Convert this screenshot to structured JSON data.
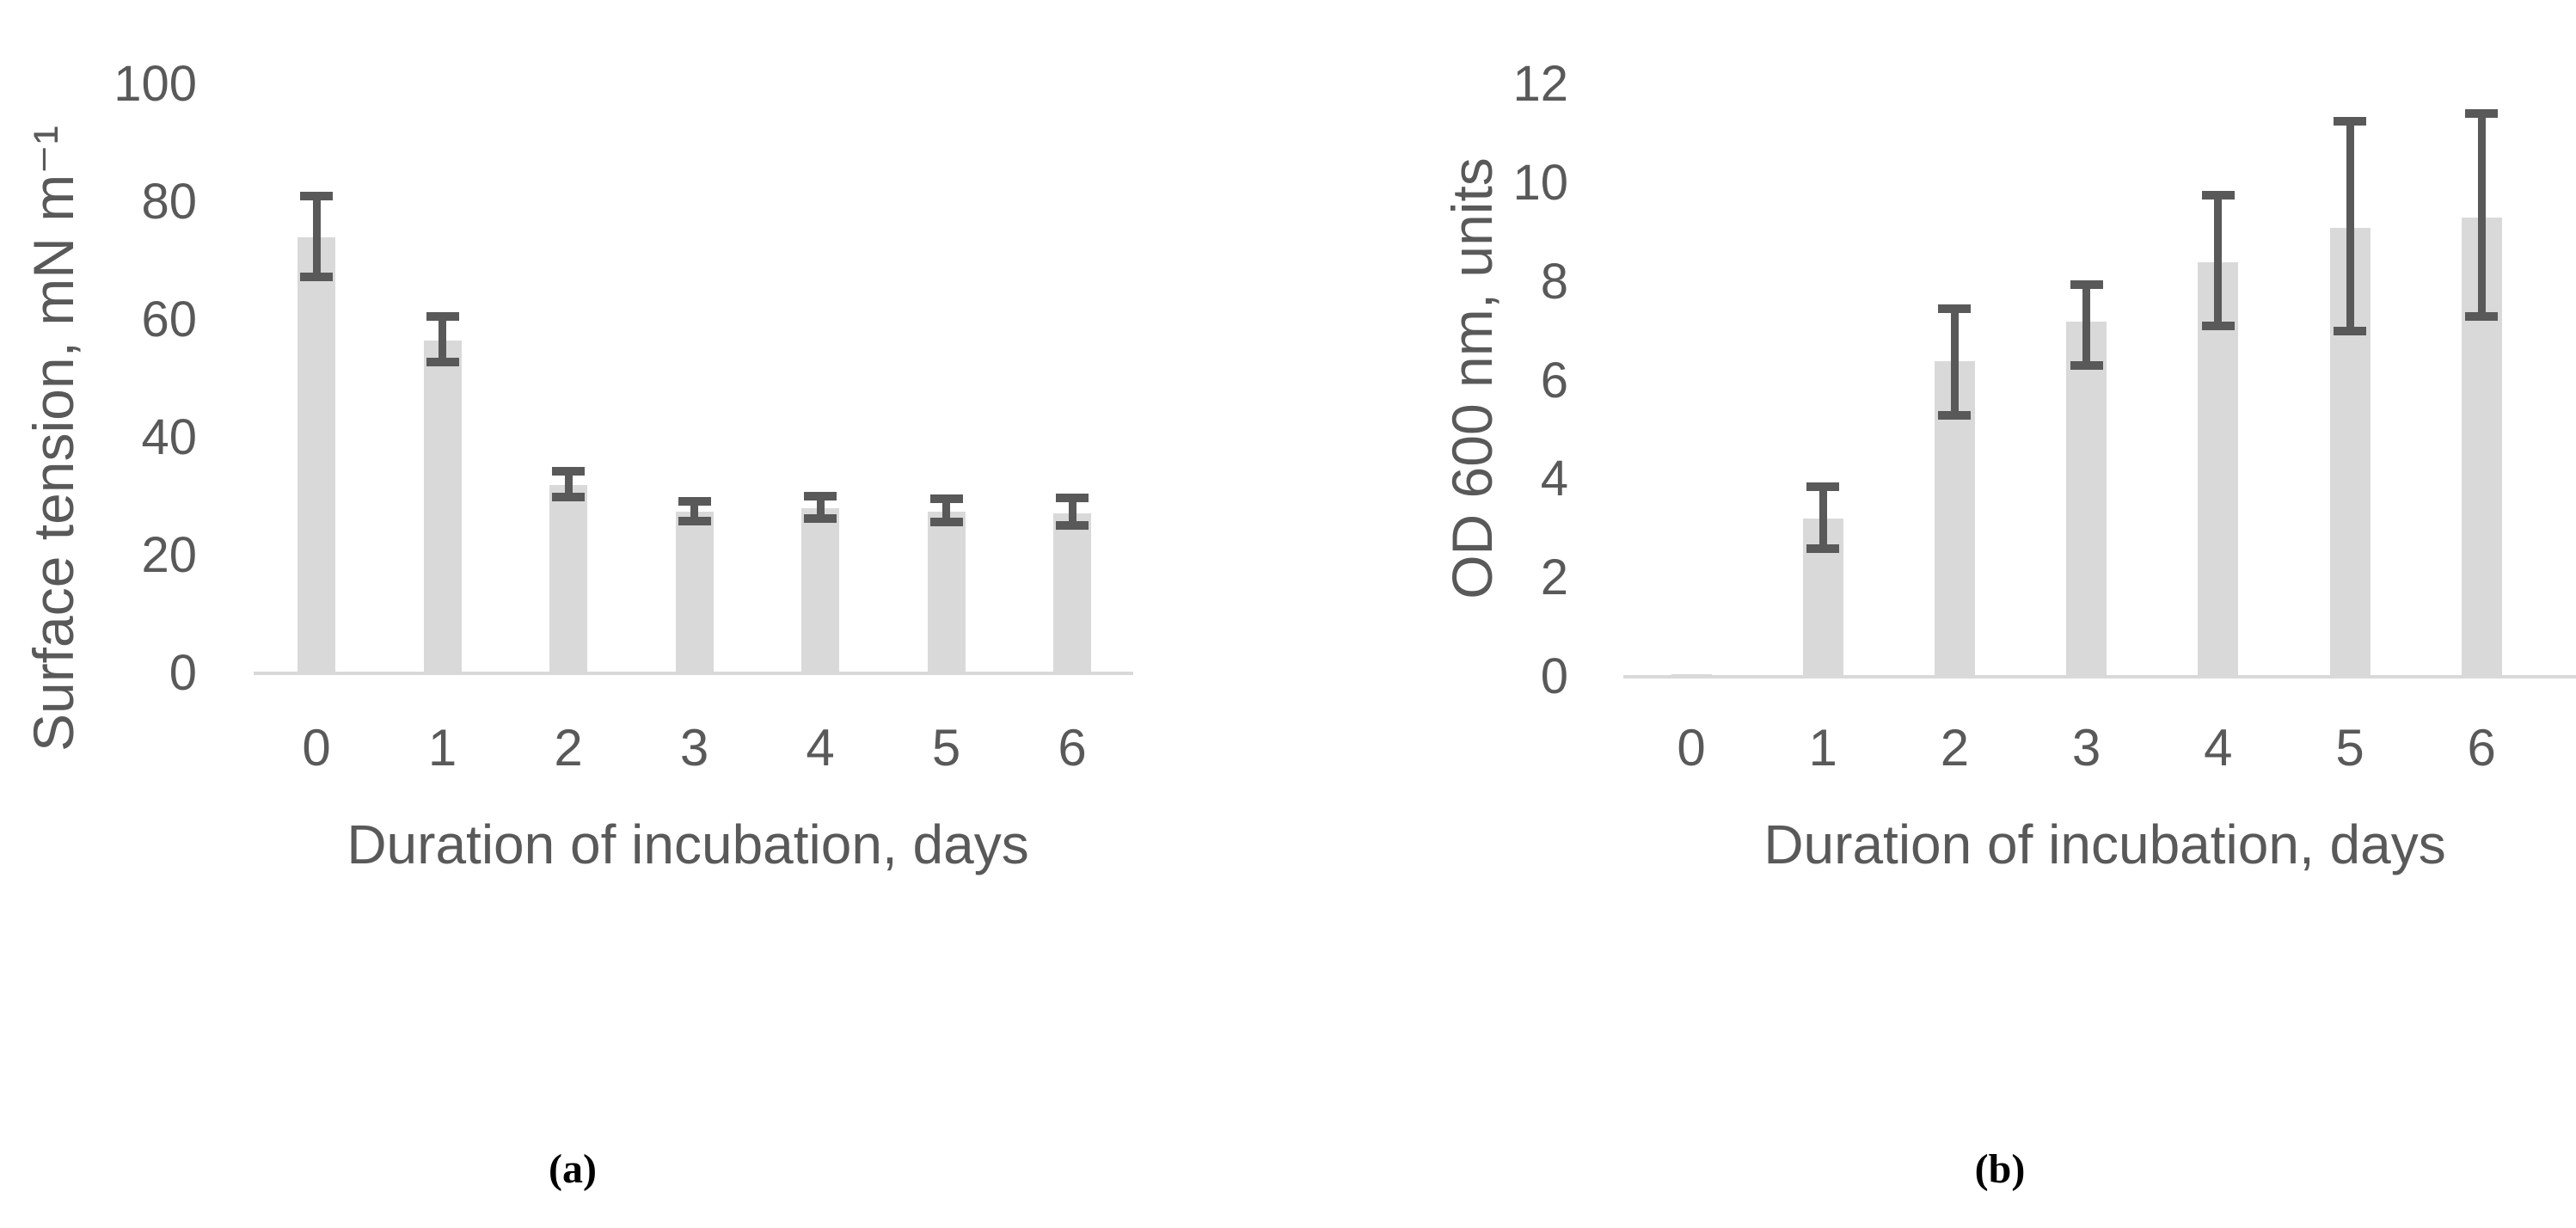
{
  "figure": {
    "panel_a_label": "(a)",
    "panel_b_label": "(b)"
  },
  "colors": {
    "bar_fill": "#d9d9d9",
    "error_bar": "#595959",
    "axis_text": "#595959",
    "axis_line": "#d9d9d9",
    "caption_text": "#000000"
  },
  "chart_data": [
    {
      "id": "a",
      "type": "bar",
      "panel_label": "(a)",
      "xlabel": "Duration of incubation, days",
      "ylabel": "Surface tension, mN m⁻¹",
      "categories": [
        "0",
        "1",
        "2",
        "3",
        "4",
        "5",
        "6"
      ],
      "values": [
        74,
        56.5,
        32,
        27.4,
        28,
        27.4,
        27.2
      ],
      "error_upper": [
        81,
        60.6,
        34.3,
        29.2,
        30.1,
        29.6,
        29.8
      ],
      "error_lower": [
        67.3,
        52.8,
        29.9,
        25.8,
        26.3,
        25.7,
        25.1
      ],
      "ylim": [
        0,
        100
      ],
      "yticks": [
        0,
        20,
        40,
        60,
        80,
        100
      ],
      "grid": false,
      "legend": null
    },
    {
      "id": "b",
      "type": "bar",
      "panel_label": "(b)",
      "xlabel": "Duration of incubation, days",
      "ylabel": "OD 600 nm, units",
      "categories": [
        "0",
        "1",
        "2",
        "3",
        "4",
        "5",
        "6"
      ],
      "values": [
        0.05,
        3.2,
        6.4,
        7.2,
        8.4,
        9.1,
        9.3
      ],
      "error_upper": [
        null,
        3.85,
        7.45,
        7.95,
        9.75,
        11.25,
        11.4
      ],
      "error_lower": [
        null,
        2.6,
        5.3,
        6.3,
        7.1,
        7.0,
        7.3
      ],
      "ylim": [
        0,
        12
      ],
      "yticks": [
        0,
        2,
        4,
        6,
        8,
        10,
        12
      ],
      "grid": false,
      "legend": null
    }
  ]
}
